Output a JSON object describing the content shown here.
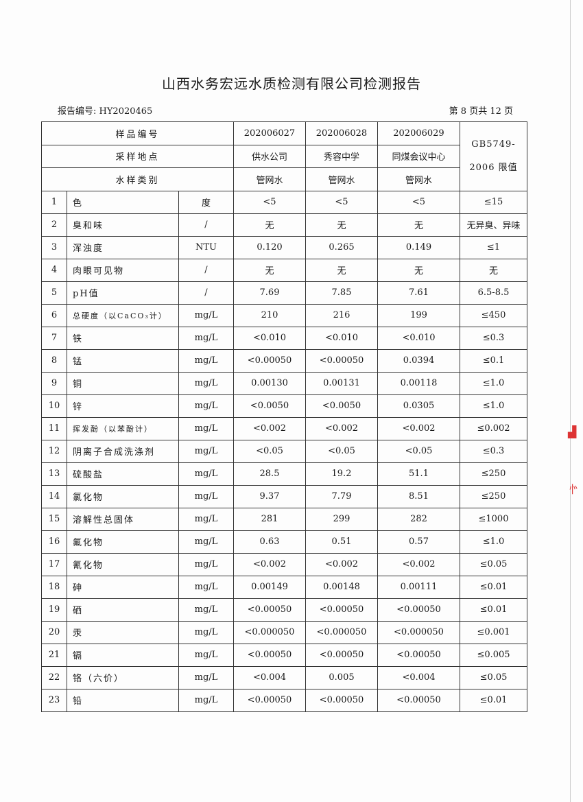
{
  "title": "山西水务宏远水质检测有限公司检测报告",
  "report_number": "报告编号: HY2020465",
  "page_info": "第 8 页共 12 页",
  "header": {
    "sample_no_label": "样品编号",
    "location_label": "采样地点",
    "type_label": "水样类别",
    "standard_line1": "GB5749-",
    "standard_line2": "2006 限值",
    "samples": [
      {
        "no": "202006027",
        "location": "供水公司",
        "type": "管网水"
      },
      {
        "no": "202006028",
        "location": "秀容中学",
        "type": "管网水"
      },
      {
        "no": "202006029",
        "location": "同煤会议中心",
        "type": "管网水"
      }
    ]
  },
  "rows": [
    {
      "idx": "1",
      "name": "色",
      "unit": "度",
      "v": [
        "<5",
        "<5",
        "<5"
      ],
      "limit": "≤15"
    },
    {
      "idx": "2",
      "name": "臭和味",
      "unit": "/",
      "v": [
        "无",
        "无",
        "无"
      ],
      "limit": "无异臭、异味"
    },
    {
      "idx": "3",
      "name": "浑浊度",
      "unit": "NTU",
      "v": [
        "0.120",
        "0.265",
        "0.149"
      ],
      "limit": "≤1"
    },
    {
      "idx": "4",
      "name": "肉眼可见物",
      "unit": "/",
      "v": [
        "无",
        "无",
        "无"
      ],
      "limit": "无"
    },
    {
      "idx": "5",
      "name": "pH值",
      "unit": "/",
      "v": [
        "7.69",
        "7.85",
        "7.61"
      ],
      "limit": "6.5-8.5"
    },
    {
      "idx": "6",
      "name": "总硬度（以CaCO₃计）",
      "unit": "mg/L",
      "v": [
        "210",
        "216",
        "199"
      ],
      "limit": "≤450"
    },
    {
      "idx": "7",
      "name": "铁",
      "unit": "mg/L",
      "v": [
        "<0.010",
        "<0.010",
        "<0.010"
      ],
      "limit": "≤0.3"
    },
    {
      "idx": "8",
      "name": "锰",
      "unit": "mg/L",
      "v": [
        "<0.00050",
        "<0.00050",
        "0.0394"
      ],
      "limit": "≤0.1"
    },
    {
      "idx": "9",
      "name": "铜",
      "unit": "mg/L",
      "v": [
        "0.00130",
        "0.00131",
        "0.00118"
      ],
      "limit": "≤1.0"
    },
    {
      "idx": "10",
      "name": "锌",
      "unit": "mg/L",
      "v": [
        "<0.0050",
        "<0.0050",
        "0.0305"
      ],
      "limit": "≤1.0"
    },
    {
      "idx": "11",
      "name": "挥发酚（以苯酚计）",
      "unit": "mg/L",
      "v": [
        "<0.002",
        "<0.002",
        "<0.002"
      ],
      "limit": "≤0.002"
    },
    {
      "idx": "12",
      "name": "阴离子合成洗涤剂",
      "unit": "mg/L",
      "v": [
        "<0.05",
        "<0.05",
        "<0.05"
      ],
      "limit": "≤0.3"
    },
    {
      "idx": "13",
      "name": "硫酸盐",
      "unit": "mg/L",
      "v": [
        "28.5",
        "19.2",
        "51.1"
      ],
      "limit": "≤250"
    },
    {
      "idx": "14",
      "name": "氯化物",
      "unit": "mg/L",
      "v": [
        "9.37",
        "7.79",
        "8.51"
      ],
      "limit": "≤250"
    },
    {
      "idx": "15",
      "name": "溶解性总固体",
      "unit": "mg/L",
      "v": [
        "281",
        "299",
        "282"
      ],
      "limit": "≤1000"
    },
    {
      "idx": "16",
      "name": "氟化物",
      "unit": "mg/L",
      "v": [
        "0.63",
        "0.51",
        "0.57"
      ],
      "limit": "≤1.0"
    },
    {
      "idx": "17",
      "name": "氰化物",
      "unit": "mg/L",
      "v": [
        "<0.002",
        "<0.002",
        "<0.002"
      ],
      "limit": "≤0.05"
    },
    {
      "idx": "18",
      "name": "砷",
      "unit": "mg/L",
      "v": [
        "0.00149",
        "0.00148",
        "0.00111"
      ],
      "limit": "≤0.01"
    },
    {
      "idx": "19",
      "name": "硒",
      "unit": "mg/L",
      "v": [
        "<0.00050",
        "<0.00050",
        "<0.00050"
      ],
      "limit": "≤0.01"
    },
    {
      "idx": "20",
      "name": "汞",
      "unit": "mg/L",
      "v": [
        "<0.000050",
        "<0.000050",
        "<0.000050"
      ],
      "limit": "≤0.001"
    },
    {
      "idx": "21",
      "name": "镉",
      "unit": "mg/L",
      "v": [
        "<0.00050",
        "<0.00050",
        "<0.00050"
      ],
      "limit": "≤0.005"
    },
    {
      "idx": "22",
      "name": "铬（六价）",
      "unit": "mg/L",
      "v": [
        "<0.004",
        "0.005",
        "<0.004"
      ],
      "limit": "≤0.05"
    },
    {
      "idx": "23",
      "name": "铅",
      "unit": "mg/L",
      "v": [
        "<0.00050",
        "<0.00050",
        "<0.00050"
      ],
      "limit": "≤0.01"
    }
  ]
}
